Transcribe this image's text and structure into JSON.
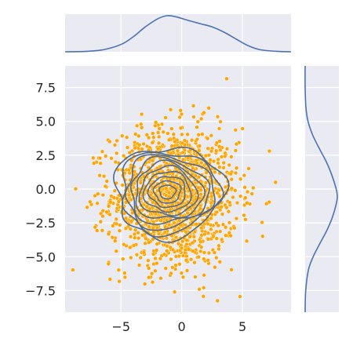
{
  "chart_data": {
    "type": "scatter",
    "title": "",
    "xlabel": "",
    "ylabel": "",
    "xlim": [
      -9.6,
      9.0
    ],
    "ylim": [
      -9.1,
      9.1
    ],
    "x_ticks": [
      -5,
      0,
      5
    ],
    "x_tick_labels": [
      "−5",
      "0",
      "5"
    ],
    "y_ticks": [
      -7.5,
      -5.0,
      -2.5,
      0.0,
      2.5,
      5.0,
      7.5
    ],
    "y_tick_labels": [
      "−7.5",
      "−5.0",
      "−2.5",
      "0.0",
      "2.5",
      "5.0",
      "7.5"
    ],
    "grid": true,
    "style": "seaborn darkgrid jointplot with KDE contours and marginal KDE curves",
    "scatter": {
      "color": "#FFA500",
      "edgecolor": "#ffffff",
      "n_points": 1500,
      "center": [
        -0.6,
        -0.6
      ],
      "std": [
        2.6,
        2.55
      ],
      "rotation_deg": 0
    },
    "contours": {
      "color": "#4c6a92",
      "levels": 10,
      "center": [
        -1.2,
        -0.2
      ],
      "outer_radii": [
        4.45,
        3.35
      ]
    },
    "marginal_x": {
      "type": "kde",
      "color": "#4c72b0",
      "x": [
        -9.6,
        -8.0,
        -6.5,
        -5.0,
        -4.0,
        -3.0,
        -2.0,
        -1.2,
        -0.5,
        0.5,
        1.5,
        2.5,
        3.5,
        4.5,
        5.5,
        6.5,
        8.0,
        9.0
      ],
      "density": [
        0.0,
        0.001,
        0.006,
        0.022,
        0.045,
        0.075,
        0.099,
        0.109,
        0.106,
        0.095,
        0.085,
        0.075,
        0.059,
        0.038,
        0.018,
        0.006,
        0.001,
        0.0
      ]
    },
    "marginal_y": {
      "type": "kde",
      "color": "#4c72b0",
      "y": [
        -9.1,
        -7.5,
        -6.0,
        -5.0,
        -4.0,
        -3.0,
        -2.0,
        -1.0,
        -0.5,
        0.0,
        1.0,
        2.0,
        3.0,
        4.0,
        5.0,
        6.0,
        7.5,
        9.1
      ],
      "density": [
        0.0,
        0.002,
        0.012,
        0.03,
        0.056,
        0.083,
        0.104,
        0.118,
        0.121,
        0.117,
        0.101,
        0.08,
        0.053,
        0.028,
        0.011,
        0.003,
        0.0,
        0.0
      ]
    }
  },
  "colors": {
    "axes_background": "#eaeaf2",
    "grid": "#ffffff",
    "kde_line": "#4c72b0",
    "contour_line": "#4c6a92",
    "scatter": "#FFA500",
    "tick_text": "#262626"
  }
}
